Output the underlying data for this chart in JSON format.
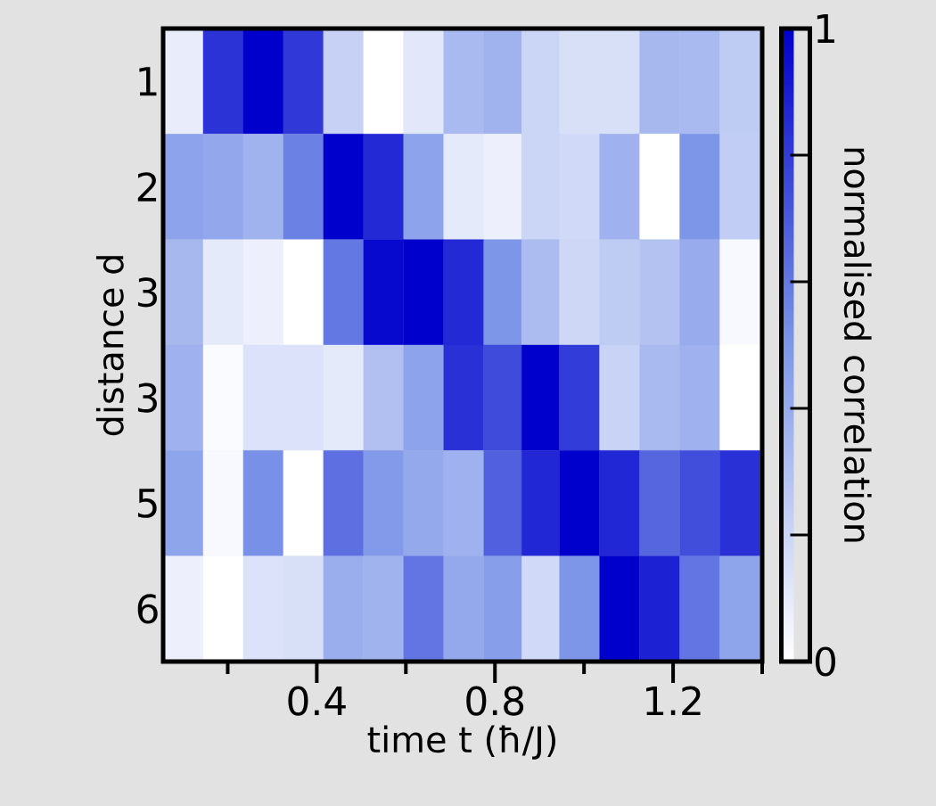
{
  "chart_data": {
    "type": "heatmap",
    "xlabel": "time  t  (ħ/J)",
    "ylabel": "distance  d",
    "clabel": "normalised correlation",
    "x": [
      0.1,
      0.19,
      0.28,
      0.37,
      0.46,
      0.55,
      0.64,
      0.73,
      0.82,
      0.9,
      0.99,
      1.08,
      1.17,
      1.26,
      1.35
    ],
    "y_categories": [
      "1",
      "2",
      "3",
      "3",
      "5",
      "6"
    ],
    "cells": [
      [
        0.09,
        0.83,
        1.0,
        0.81,
        0.22,
        0.0,
        0.11,
        0.33,
        0.36,
        0.2,
        0.15,
        0.15,
        0.34,
        0.33,
        0.25
      ],
      [
        0.44,
        0.42,
        0.36,
        0.57,
        1.0,
        0.86,
        0.44,
        0.1,
        0.07,
        0.2,
        0.18,
        0.37,
        0.0,
        0.5,
        0.24
      ],
      [
        0.34,
        0.1,
        0.07,
        0.0,
        0.6,
        0.97,
        1.0,
        0.86,
        0.5,
        0.32,
        0.19,
        0.25,
        0.29,
        0.4,
        0.03
      ],
      [
        0.37,
        0.02,
        0.14,
        0.14,
        0.1,
        0.3,
        0.44,
        0.84,
        0.75,
        1.0,
        0.8,
        0.21,
        0.33,
        0.37,
        0.0
      ],
      [
        0.43,
        0.03,
        0.52,
        0.0,
        0.63,
        0.48,
        0.41,
        0.37,
        0.68,
        0.87,
        1.0,
        0.87,
        0.66,
        0.74,
        0.84
      ],
      [
        0.07,
        0.0,
        0.14,
        0.15,
        0.39,
        0.36,
        0.61,
        0.41,
        0.46,
        0.18,
        0.5,
        1.0,
        0.89,
        0.61,
        0.43
      ]
    ],
    "xlim": [
      0.055,
      1.4
    ],
    "xticks": [
      {
        "value": 0.2,
        "label": null
      },
      0.4,
      {
        "value": 0.6,
        "label": null
      },
      0.8,
      {
        "value": 1.0,
        "label": null
      },
      1.2,
      {
        "value": 1.4,
        "label": null
      }
    ],
    "clim": [
      0,
      1
    ],
    "cticks": [
      0,
      {
        "value": 0.2,
        "label": null
      },
      {
        "value": 0.4,
        "label": null
      },
      {
        "value": 0.6,
        "label": null
      },
      {
        "value": 0.8,
        "label": null
      },
      1
    ]
  }
}
